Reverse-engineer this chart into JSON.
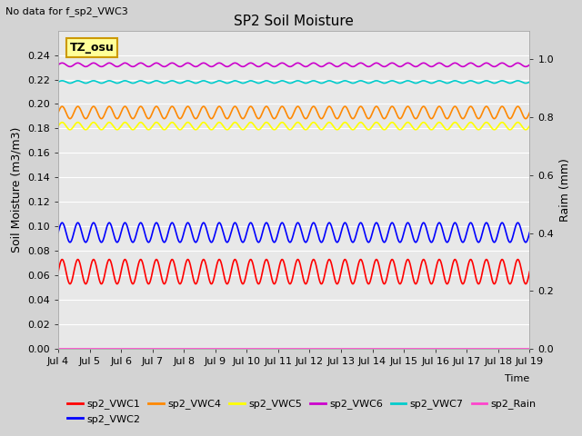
{
  "title": "SP2 Soil Moisture",
  "no_data_text": "No data for f_sp2_VWC3",
  "tz_label": "TZ_osu",
  "xlabel": "Time",
  "ylabel_left": "Soil Moisture (m3/m3)",
  "ylabel_right": "Raim (mm)",
  "xlim_days": [
    4,
    19
  ],
  "ylim_left": [
    0.0,
    0.26
  ],
  "ylim_right": [
    0.0,
    1.1
  ],
  "x_ticks_labels": [
    "Jul 4",
    "Jul 5",
    "Jul 6",
    "Jul 7",
    "Jul 8",
    "Jul 9",
    "Jul 10",
    "Jul 11",
    "Jul 12",
    "Jul 13",
    "Jul 14",
    "Jul 15",
    "Jul 16",
    "Jul 17",
    "Jul 18",
    "Jul 19"
  ],
  "x_ticks_days": [
    4,
    5,
    6,
    7,
    8,
    9,
    10,
    11,
    12,
    13,
    14,
    15,
    16,
    17,
    18,
    19
  ],
  "series": [
    {
      "name": "sp2_VWC1",
      "color": "#ff0000",
      "base": 0.063,
      "amp": 0.01,
      "period": 0.5
    },
    {
      "name": "sp2_VWC2",
      "color": "#0000ff",
      "base": 0.095,
      "amp": 0.008,
      "period": 0.5
    },
    {
      "name": "sp2_VWC4",
      "color": "#ff8800",
      "base": 0.193,
      "amp": 0.005,
      "period": 0.5
    },
    {
      "name": "sp2_VWC5",
      "color": "#ffff00",
      "base": 0.182,
      "amp": 0.003,
      "period": 0.5
    },
    {
      "name": "sp2_VWC6",
      "color": "#cc00cc",
      "base": 0.232,
      "amp": 0.0015,
      "period": 0.5
    },
    {
      "name": "sp2_VWC7",
      "color": "#00cccc",
      "base": 0.218,
      "amp": 0.001,
      "period": 0.5
    },
    {
      "name": "sp2_Rain",
      "color": "#ff44cc",
      "base": 0.0,
      "amp": 0.0,
      "period": 1.0
    }
  ],
  "yticks_left": [
    0.0,
    0.02,
    0.04,
    0.06,
    0.08,
    0.1,
    0.12,
    0.14,
    0.16,
    0.18,
    0.2,
    0.22,
    0.24
  ],
  "yticks_right": [
    0.0,
    0.2,
    0.4,
    0.6,
    0.8,
    1.0
  ],
  "background_color": "#d3d3d3",
  "plot_bg_color": "#e8e8e8",
  "grid_color": "#ffffff",
  "tz_box_color": "#ffff99",
  "tz_box_edge": "#cc9900",
  "figsize": [
    6.4,
    4.8
  ],
  "dpi": 100
}
